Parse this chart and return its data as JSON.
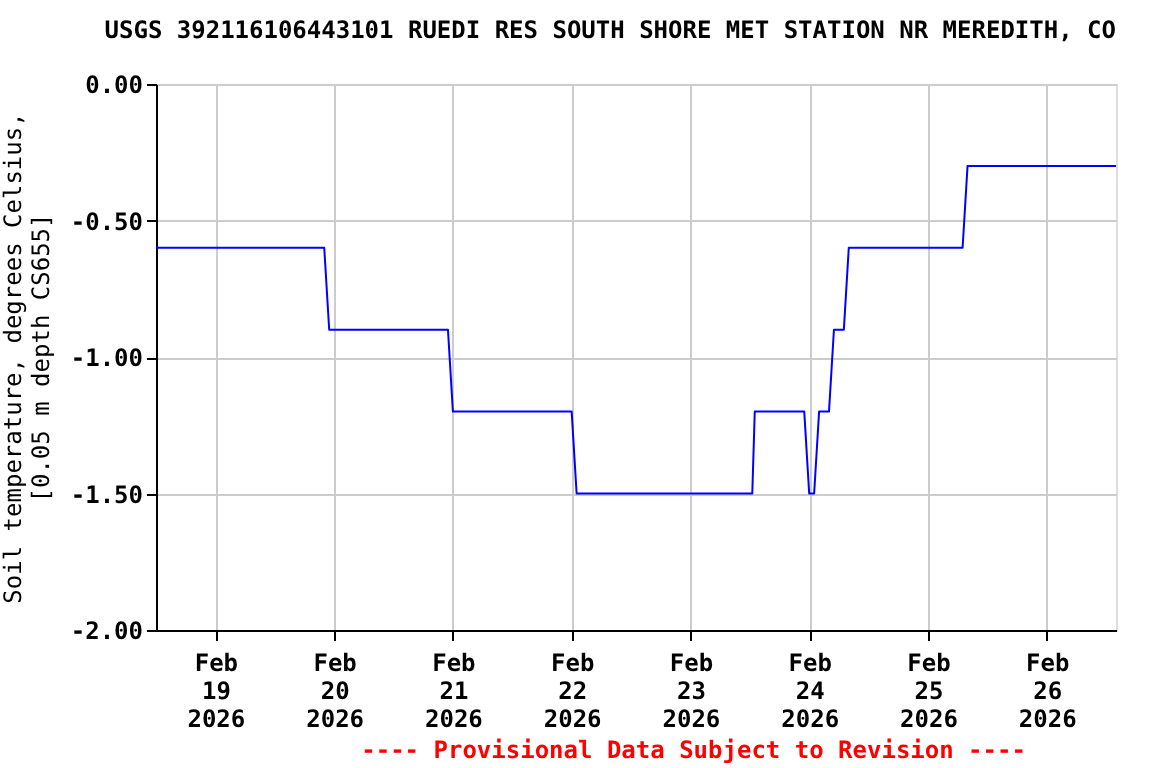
{
  "chart_data": {
    "type": "line",
    "title": "USGS 392116106443101 RUEDI RES SOUTH SHORE MET STATION NR MEREDITH, CO",
    "ylabel": "Soil temperature, degrees Celsius,\n[0.05 m depth CS655]",
    "x": [
      "2026-02-18T12:00",
      "2026-02-19T22:00",
      "2026-02-19T23:00",
      "2026-02-20T23:00",
      "2026-02-21T00:00",
      "2026-02-22T00:00",
      "2026-02-22T01:00",
      "2026-02-23T12:30",
      "2026-02-23T13:00",
      "2026-02-23T23:00",
      "2026-02-24T00:00",
      "2026-02-24T01:00",
      "2026-02-24T02:00",
      "2026-02-24T04:00",
      "2026-02-24T05:00",
      "2026-02-24T07:00",
      "2026-02-24T08:00",
      "2026-02-25T07:00",
      "2026-02-25T08:00",
      "2026-02-26T14:00"
    ],
    "series": [
      {
        "color": "#0000ff",
        "values": [
          -0.6,
          -0.6,
          -0.9,
          -0.9,
          -1.2,
          -1.2,
          -1.5,
          -1.5,
          -1.2,
          -1.2,
          -1.5,
          -1.5,
          -1.2,
          -1.2,
          -0.9,
          -0.9,
          -0.6,
          -0.6,
          -0.3,
          -0.3
        ]
      }
    ],
    "xlim": [
      "2026-02-18T12:00",
      "2026-02-26T14:00"
    ],
    "xticks": [
      {
        "value": "2026-02-19T00:00",
        "label": "Feb\n19\n2026"
      },
      {
        "value": "2026-02-20T00:00",
        "label": "Feb\n20\n2026"
      },
      {
        "value": "2026-02-21T00:00",
        "label": "Feb\n21\n2026"
      },
      {
        "value": "2026-02-22T00:00",
        "label": "Feb\n22\n2026"
      },
      {
        "value": "2026-02-23T00:00",
        "label": "Feb\n23\n2026"
      },
      {
        "value": "2026-02-24T00:00",
        "label": "Feb\n24\n2026"
      },
      {
        "value": "2026-02-25T00:00",
        "label": "Feb\n25\n2026"
      },
      {
        "value": "2026-02-26T00:00",
        "label": "Feb\n26\n2026"
      }
    ],
    "ylim": [
      -2,
      0
    ],
    "yticks": [
      {
        "value": -2,
        "label": "-2.00"
      },
      {
        "value": -1.5,
        "label": "-1.50"
      },
      {
        "value": -1,
        "label": "-1.00"
      },
      {
        "value": -0.5,
        "label": "-0.50"
      },
      {
        "value": 0,
        "label": "0.00"
      }
    ],
    "grid": true,
    "marker": "none",
    "line_style": "solid",
    "annotations": [
      "---- Provisional Data Subject to Revision ----"
    ]
  }
}
